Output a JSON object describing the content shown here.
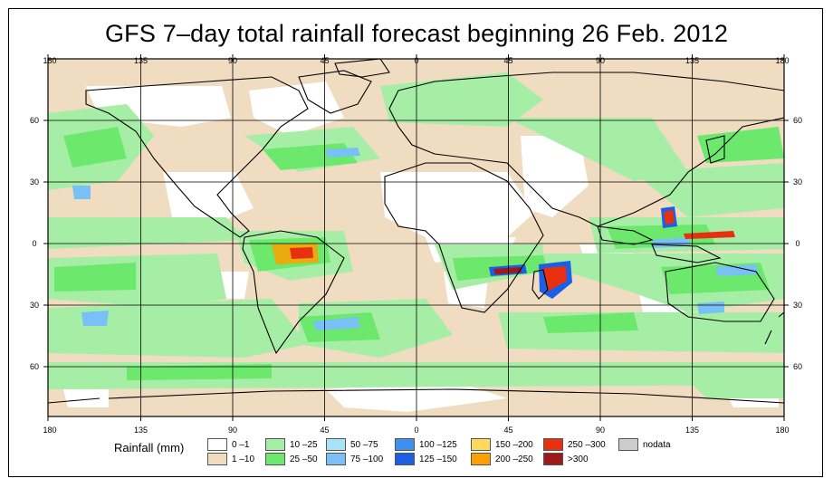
{
  "title": "GFS 7–day total rainfall forecast beginning 26 Feb. 2012",
  "axes": {
    "lon_ticks": [
      "180",
      "135",
      "90",
      "45",
      "0",
      "45",
      "90",
      "135",
      "180"
    ],
    "lat_ticks_left": [
      "60",
      "30",
      "0",
      "30",
      "60"
    ],
    "lat_ticks_right": [
      "60",
      "30",
      "0",
      "30",
      "60"
    ]
  },
  "legend": {
    "title": "Rainfall (mm)",
    "items": [
      {
        "label": "0 –1",
        "color": "#ffffff"
      },
      {
        "label": "1 –10",
        "color": "#f0dcc0"
      },
      {
        "label": "10 –25",
        "color": "#a6eea6"
      },
      {
        "label": "25 –50",
        "color": "#6ce86c"
      },
      {
        "label": "50 –75",
        "color": "#a8e4f8"
      },
      {
        "label": "75 –100",
        "color": "#78c0f5"
      },
      {
        "label": "100 –125",
        "color": "#3d8ff0"
      },
      {
        "label": "125 –150",
        "color": "#1a5fe6"
      },
      {
        "label": "150 –200",
        "color": "#ffd85c"
      },
      {
        "label": "200 –250",
        "color": "#ffa000"
      },
      {
        "label": "250 –300",
        "color": "#e83010"
      },
      {
        "label": ">300",
        "color": "#a01818"
      },
      {
        "label": "nodata",
        "color": "#cccccc"
      }
    ]
  },
  "palette": {
    "ocean_base": "#f0dcc0",
    "grid": "#000000",
    "coast": "#000000"
  }
}
